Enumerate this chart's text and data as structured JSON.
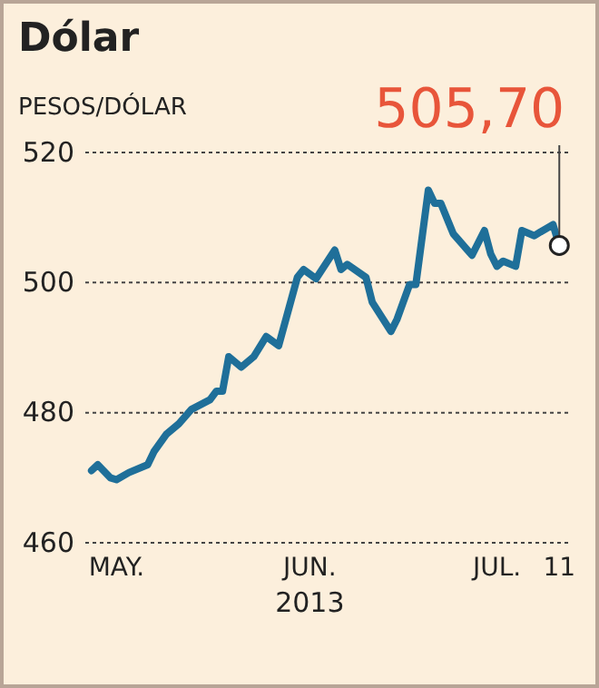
{
  "chart_data": {
    "type": "line",
    "title": "Dólar",
    "subtitle": "PESOS/DÓLAR",
    "xlabel": "2013",
    "x": [
      "2013-04-27",
      "2013-04-28",
      "2013-04-30",
      "2013-05-01",
      "2013-05-03",
      "2013-05-06",
      "2013-05-07",
      "2013-05-09",
      "2013-05-11",
      "2013-05-13",
      "2013-05-16",
      "2013-05-17",
      "2013-05-18",
      "2013-05-19",
      "2013-05-21",
      "2013-05-23",
      "2013-05-25",
      "2013-05-27",
      "2013-05-30",
      "2013-05-31",
      "2013-06-02",
      "2013-06-05",
      "2013-06-06",
      "2013-06-07",
      "2013-06-10",
      "2013-06-11",
      "2013-06-14",
      "2013-06-15",
      "2013-06-17",
      "2013-06-18",
      "2013-06-20",
      "2013-06-21",
      "2013-06-22",
      "2013-06-24",
      "2013-06-26",
      "2013-06-27",
      "2013-06-29",
      "2013-06-30",
      "2013-07-01",
      "2013-07-02",
      "2013-07-04",
      "2013-07-05",
      "2013-07-07",
      "2013-07-08",
      "2013-07-10",
      "2013-07-11"
    ],
    "series": [
      {
        "color": "#1f6f99",
        "values": [
          471.1,
          472,
          470,
          469.7,
          470.8,
          472,
          474,
          476.7,
          478.3,
          480.5,
          482,
          483.3,
          483.3,
          488.6,
          487,
          488.6,
          491.7,
          490.3,
          500.8,
          502,
          500.6,
          505,
          502,
          502.8,
          500.8,
          497,
          492.5,
          494.4,
          499.7,
          499.7,
          514.2,
          512.2,
          512.2,
          507.5,
          505.3,
          504.2,
          508,
          504.4,
          502.5,
          503.3,
          502.5,
          508,
          507.2,
          507.8,
          508.9,
          505.7
        ]
      }
    ],
    "xlim": [
      "2013-04-26",
      "2013-07-13"
    ],
    "xticks": [
      {
        "value": "2013-05-01",
        "label": "MAY."
      },
      {
        "value": "2013-06-01",
        "label": "JUN."
      },
      {
        "value": "2013-07-01",
        "label": "JUL."
      },
      {
        "value": "2013-07-11",
        "label": "11"
      }
    ],
    "ylim": [
      460,
      520
    ],
    "yticks": [
      460,
      480,
      500,
      520
    ],
    "grid": "y",
    "marker": "none",
    "line_style": "solid",
    "annotations": [
      {
        "text": "505,70",
        "x": "2013-07-11",
        "y": 505.7
      }
    ]
  }
}
